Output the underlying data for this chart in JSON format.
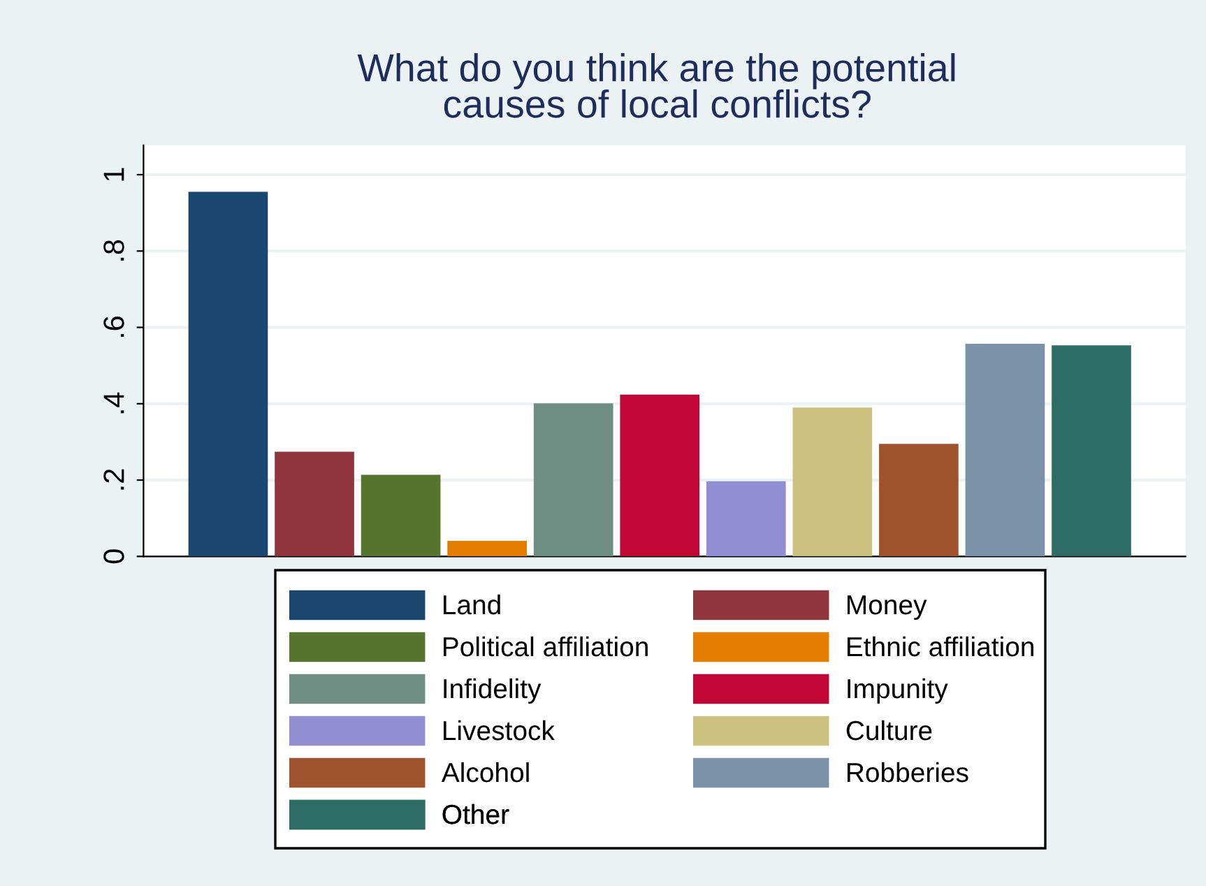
{
  "chart_data": {
    "type": "bar",
    "title": "What do you think are the potential\ncauses of local conflicts?",
    "categories": [
      null,
      null,
      null,
      null,
      null,
      null,
      null,
      null,
      null,
      null,
      null
    ],
    "series": [
      {
        "name": "Land",
        "color": "#1a476f",
        "values": [
          0.955,
          null,
          null,
          null,
          null,
          null,
          null,
          null,
          null,
          null,
          null
        ]
      },
      {
        "name": "Money",
        "color": "#90353b",
        "values": [
          null,
          0.274,
          null,
          null,
          null,
          null,
          null,
          null,
          null,
          null,
          null
        ]
      },
      {
        "name": "Political affiliation",
        "color": "#55752f",
        "values": [
          null,
          null,
          0.214,
          null,
          null,
          null,
          null,
          null,
          null,
          null,
          null
        ]
      },
      {
        "name": "Ethnic affiliation",
        "color": "#e37e00",
        "values": [
          null,
          null,
          null,
          0.041,
          null,
          null,
          null,
          null,
          null,
          null,
          null
        ]
      },
      {
        "name": "Infidelity",
        "color": "#6e8e84",
        "values": [
          null,
          null,
          null,
          null,
          0.401,
          null,
          null,
          null,
          null,
          null,
          null
        ]
      },
      {
        "name": "Impunity",
        "color": "#c10534",
        "values": [
          null,
          null,
          null,
          null,
          null,
          0.424,
          null,
          null,
          null,
          null,
          null
        ]
      },
      {
        "name": "Livestock",
        "color": "#938dd2",
        "values": [
          null,
          null,
          null,
          null,
          null,
          null,
          0.197,
          null,
          null,
          null,
          null
        ]
      },
      {
        "name": "Culture",
        "color": "#cac27e",
        "values": [
          null,
          null,
          null,
          null,
          null,
          null,
          null,
          0.39,
          null,
          null,
          null
        ]
      },
      {
        "name": "Alcohol",
        "color": "#a0522d",
        "values": [
          null,
          null,
          null,
          null,
          null,
          null,
          null,
          null,
          0.295,
          null,
          null
        ]
      },
      {
        "name": "Robberies",
        "color": "#7b92a8",
        "values": [
          null,
          null,
          null,
          null,
          null,
          null,
          null,
          null,
          null,
          0.557,
          null
        ]
      },
      {
        "name": "Other",
        "color": "#2d6d66",
        "values": [
          null,
          null,
          null,
          null,
          null,
          null,
          null,
          null,
          null,
          null,
          0.553
        ]
      }
    ],
    "ylim": [
      0,
      1.077
    ],
    "yticks": [
      0,
      {
        "value": 0.2,
        "label": ".2"
      },
      {
        "value": 0.4,
        "label": ".4"
      },
      {
        "value": 0.6,
        "label": ".6"
      },
      {
        "value": 0.8,
        "label": ".8"
      },
      1
    ],
    "grid": "y",
    "legend": "bottom",
    "tick_labels": "y"
  }
}
